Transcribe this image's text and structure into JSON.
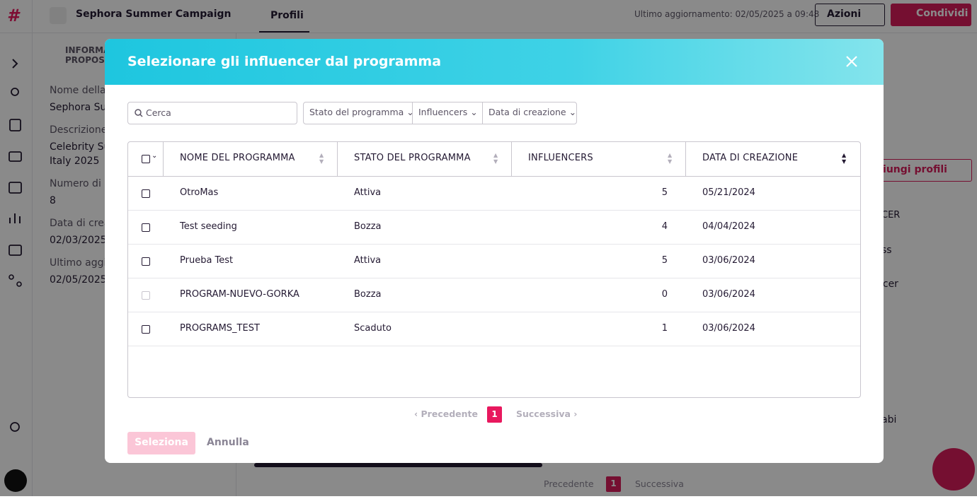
{
  "header": {
    "title": "Sephora Summer Campaign",
    "tab": "Profili",
    "last_update": "Ultimo aggiornamento: 02/05/2025 a 09:48",
    "actions": "Azioni",
    "share": "Condividi"
  },
  "panel": {
    "section": [
      "INFORMA",
      "PROPOS"
    ],
    "fields": [
      {
        "label": "Nome della p",
        "value": [
          "Sephora Sur"
        ]
      },
      {
        "label": "Descrizione",
        "value": [
          "Celebrity Su",
          "Italy 2025"
        ]
      },
      {
        "label": "Numero di p",
        "value": [
          "8"
        ]
      },
      {
        "label": "Data di crea",
        "value": [
          "02/03/2025"
        ]
      },
      {
        "label": "Ultimo aggio",
        "value": [
          "02/05/2025"
        ]
      }
    ]
  },
  "background_table": {
    "add_profiles": "giungi profili",
    "column": "CER",
    "cells": [
      "ss",
      "ncer",
      "abi"
    ],
    "pagination": {
      "previous": "Precedente",
      "page": "1",
      "next": "Successiva"
    }
  },
  "modal": {
    "title": "Selezionare gli influencer dal programma",
    "search_placeholder": "Cerca",
    "filters": [
      "Stato del programma",
      "Influencers",
      "Data di creazione"
    ],
    "columns": [
      "NOME DEL PROGRAMMA",
      "STATO DEL PROGRAMMA",
      "INFLUENCERS",
      "DATA DI CREAZIONE"
    ],
    "rows": [
      [
        "OtroMas",
        "Attiva",
        5,
        "05/21/2024"
      ],
      [
        "Test seeding",
        "Bozza",
        4,
        "04/04/2024"
      ],
      [
        "Prueba Test",
        "Attiva",
        5,
        "03/06/2024"
      ],
      [
        "PROGRAM-NUEVO-GORKA",
        "Bozza",
        0,
        "03/06/2024"
      ],
      [
        "PROGRAMS_TEST",
        "Scaduto",
        1,
        "03/06/2024"
      ]
    ],
    "pagination": {
      "previous": "Precedente",
      "page": 1,
      "next": "Successiva"
    },
    "buttons": {
      "select": "Seleziona",
      "cancel": "Annulla"
    }
  }
}
